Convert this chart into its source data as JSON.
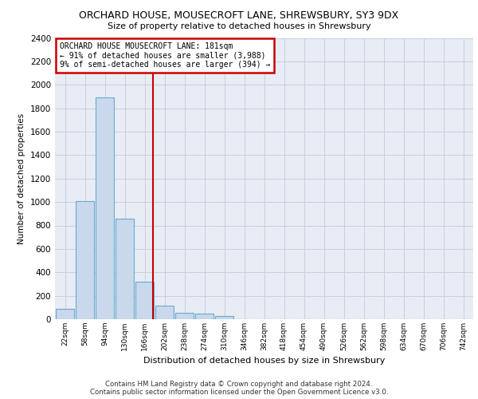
{
  "title1": "ORCHARD HOUSE, MOUSECROFT LANE, SHREWSBURY, SY3 9DX",
  "title2": "Size of property relative to detached houses in Shrewsbury",
  "xlabel": "Distribution of detached houses by size in Shrewsbury",
  "ylabel": "Number of detached properties",
  "categories": [
    "22sqm",
    "58sqm",
    "94sqm",
    "130sqm",
    "166sqm",
    "202sqm",
    "238sqm",
    "274sqm",
    "310sqm",
    "346sqm",
    "382sqm",
    "418sqm",
    "454sqm",
    "490sqm",
    "526sqm",
    "562sqm",
    "598sqm",
    "634sqm",
    "670sqm",
    "706sqm",
    "742sqm"
  ],
  "values": [
    90,
    1010,
    1890,
    860,
    320,
    115,
    55,
    45,
    30,
    0,
    0,
    0,
    0,
    0,
    0,
    0,
    0,
    0,
    0,
    0,
    0
  ],
  "bar_color": "#c9d8ea",
  "bar_edge_color": "#6aaad4",
  "vline_color": "#cc0000",
  "annotation_text": "ORCHARD HOUSE MOUSECROFT LANE: 181sqm\n← 91% of detached houses are smaller (3,988)\n9% of semi-detached houses are larger (394) →",
  "annotation_box_color": "#ffffff",
  "annotation_box_edge": "#cc0000",
  "ylim": [
    0,
    2400
  ],
  "yticks": [
    0,
    200,
    400,
    600,
    800,
    1000,
    1200,
    1400,
    1600,
    1800,
    2000,
    2200,
    2400
  ],
  "grid_color": "#c8d0dc",
  "bg_color": "#e8ecf4",
  "footer1": "Contains HM Land Registry data © Crown copyright and database right 2024.",
  "footer2": "Contains public sector information licensed under the Open Government Licence v3.0."
}
